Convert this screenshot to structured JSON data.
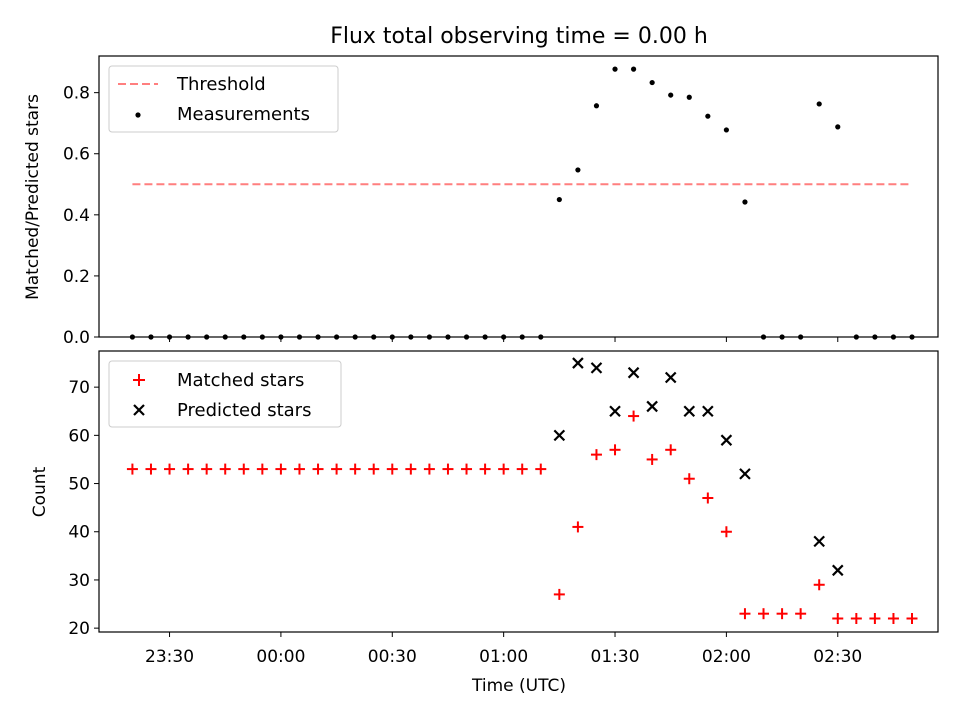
{
  "chart_data": {
    "title": "Flux total observing time = 0.00 h",
    "xlabel": "Time (UTC)",
    "x_ticks": [
      "23:30",
      "00:00",
      "00:30",
      "01:00",
      "01:30",
      "02:00",
      "02:30"
    ],
    "x_times": [
      "23:20",
      "23:25",
      "23:30",
      "23:35",
      "23:40",
      "23:45",
      "23:50",
      "23:55",
      "00:00",
      "00:05",
      "00:10",
      "00:15",
      "00:20",
      "00:25",
      "00:30",
      "00:35",
      "00:40",
      "00:45",
      "00:50",
      "00:55",
      "01:00",
      "01:05",
      "01:10",
      "01:15",
      "01:20",
      "01:25",
      "01:30",
      "01:35",
      "01:40",
      "01:45",
      "01:50",
      "01:55",
      "02:00",
      "02:05",
      "02:10",
      "02:15",
      "02:20",
      "02:25",
      "02:30",
      "02:35",
      "02:40",
      "02:45",
      "02:50"
    ],
    "x_range": [
      "23:11",
      "02:57"
    ],
    "panels": [
      {
        "type": "scatter",
        "ylabel": "Matched/Predicted stars",
        "ylim": [
          0,
          0.92
        ],
        "y_ticks": [
          "0.0",
          "0.2",
          "0.4",
          "0.6",
          "0.8"
        ],
        "y_tick_values": [
          0,
          0.2,
          0.4,
          0.6,
          0.8
        ],
        "legend_position": "top-left",
        "threshold": {
          "name": "Threshold",
          "value": 0.5,
          "x_from": "23:20",
          "x_to": "02:50",
          "color": "#ff7f7f"
        },
        "series": [
          {
            "name": "Measurements",
            "color": "#000000",
            "marker": "dot",
            "x": [
              "23:20",
              "23:25",
              "23:30",
              "23:35",
              "23:40",
              "23:45",
              "23:50",
              "23:55",
              "00:00",
              "00:05",
              "00:10",
              "00:15",
              "00:20",
              "00:25",
              "00:30",
              "00:35",
              "00:40",
              "00:45",
              "00:50",
              "00:55",
              "01:00",
              "01:05",
              "01:10",
              "01:15",
              "01:20",
              "01:25",
              "01:30",
              "01:35",
              "01:40",
              "01:45",
              "01:50",
              "01:55",
              "02:00",
              "02:05",
              "02:10",
              "02:15",
              "02:20",
              "02:25",
              "02:30",
              "02:35",
              "02:40",
              "02:45",
              "02:50"
            ],
            "values": [
              0,
              0,
              0,
              0,
              0,
              0,
              0,
              0,
              0,
              0,
              0,
              0,
              0,
              0,
              0,
              0,
              0,
              0,
              0,
              0,
              0,
              0,
              0,
              0.45,
              0.547,
              0.757,
              0.877,
              0.877,
              0.833,
              0.792,
              0.785,
              0.723,
              0.678,
              0.442,
              0,
              0,
              0,
              0.763,
              0.688,
              0,
              0,
              0,
              0
            ]
          }
        ]
      },
      {
        "type": "scatter",
        "ylabel": "Count",
        "ylim": [
          19.2,
          77.5
        ],
        "y_ticks": [
          "20",
          "30",
          "40",
          "50",
          "60",
          "70"
        ],
        "y_tick_values": [
          20,
          30,
          40,
          50,
          60,
          70
        ],
        "legend_position": "top-left",
        "series": [
          {
            "name": "Matched stars",
            "color": "#ff0000",
            "marker": "plus",
            "x": [
              "23:20",
              "23:25",
              "23:30",
              "23:35",
              "23:40",
              "23:45",
              "23:50",
              "23:55",
              "00:00",
              "00:05",
              "00:10",
              "00:15",
              "00:20",
              "00:25",
              "00:30",
              "00:35",
              "00:40",
              "00:45",
              "00:50",
              "00:55",
              "01:00",
              "01:05",
              "01:10",
              "01:15",
              "01:20",
              "01:25",
              "01:30",
              "01:35",
              "01:40",
              "01:45",
              "01:50",
              "01:55",
              "02:00",
              "02:05",
              "02:10",
              "02:15",
              "02:20",
              "02:25",
              "02:30",
              "02:35",
              "02:40",
              "02:45",
              "02:50"
            ],
            "values": [
              53,
              53,
              53,
              53,
              53,
              53,
              53,
              53,
              53,
              53,
              53,
              53,
              53,
              53,
              53,
              53,
              53,
              53,
              53,
              53,
              53,
              53,
              53,
              27,
              41,
              56,
              57,
              64,
              55,
              57,
              51,
              47,
              40,
              23,
              23,
              23,
              23,
              29,
              22,
              22,
              22,
              22,
              22
            ]
          },
          {
            "name": "Predicted stars",
            "color": "#000000",
            "marker": "x",
            "x": [
              "01:15",
              "01:20",
              "01:25",
              "01:30",
              "01:35",
              "01:40",
              "01:45",
              "01:50",
              "01:55",
              "02:00",
              "02:05",
              "02:25",
              "02:30"
            ],
            "values": [
              60,
              75,
              74,
              65,
              73,
              66,
              72,
              65,
              65,
              59,
              52,
              38,
              32
            ]
          }
        ]
      }
    ]
  }
}
